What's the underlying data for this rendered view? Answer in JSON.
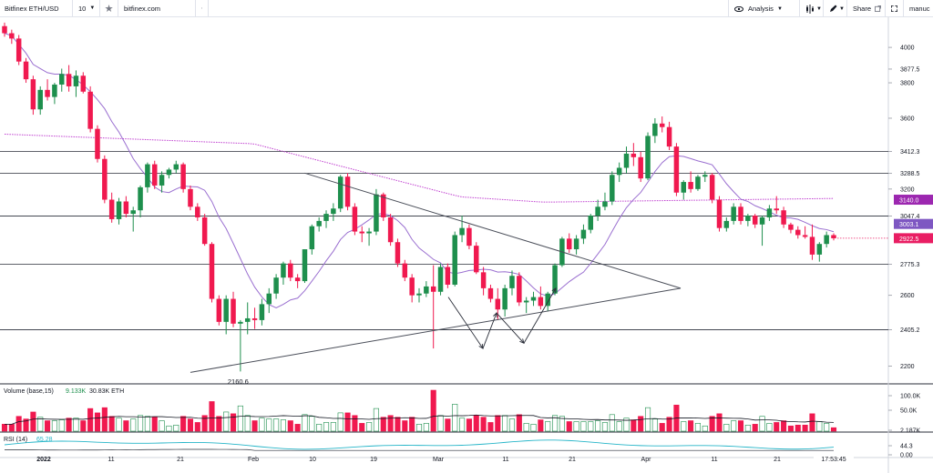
{
  "toolbar": {
    "symbol": "Bitfinex ETH/USD",
    "interval": "10",
    "site": "bitfinex.com",
    "analysis_label": "Analysis",
    "share_label": "Share",
    "user": "manuc"
  },
  "chart_data": {
    "type": "candlestick",
    "ylim": [
      2100,
      4170
    ],
    "price_ticks": [
      2200,
      2405.2,
      2600,
      2775.3,
      3047.4,
      3200,
      3288.5,
      3412.3,
      3600,
      3800,
      3877.5,
      4000
    ],
    "horizontal_levels": [
      2405.2,
      2775.3,
      3047.4,
      3288.5,
      3412.3
    ],
    "price_labels": [
      {
        "text": "3140.0",
        "value": 3140.0,
        "color": "#9c27b0"
      },
      {
        "text": "3003.1",
        "value": 3003.1,
        "color": "#7e57c2"
      },
      {
        "text": "2922.5",
        "value": 2922.5,
        "color": "#e91e63"
      }
    ],
    "annotations": [
      {
        "text": "2160.6",
        "value": 2160.6
      }
    ],
    "x_labels": [
      "2022",
      "11",
      "21",
      "Feb",
      "10",
      "19",
      "Mar",
      "11",
      "21",
      "Apr",
      "11",
      "21",
      "17:53:45"
    ],
    "up_color": "#1e8f4d",
    "down_color": "#f0194f",
    "candles": [
      {
        "o": 4120,
        "h": 4140,
        "l": 4060,
        "c": 4080
      },
      {
        "o": 4080,
        "h": 4100,
        "l": 4020,
        "c": 4050
      },
      {
        "o": 4050,
        "h": 4070,
        "l": 3900,
        "c": 3920
      },
      {
        "o": 3920,
        "h": 3940,
        "l": 3800,
        "c": 3820
      },
      {
        "o": 3820,
        "h": 3840,
        "l": 3620,
        "c": 3650
      },
      {
        "o": 3650,
        "h": 3780,
        "l": 3620,
        "c": 3760
      },
      {
        "o": 3760,
        "h": 3820,
        "l": 3700,
        "c": 3720
      },
      {
        "o": 3720,
        "h": 3800,
        "l": 3680,
        "c": 3790
      },
      {
        "o": 3790,
        "h": 3880,
        "l": 3750,
        "c": 3850
      },
      {
        "o": 3850,
        "h": 3900,
        "l": 3750,
        "c": 3780
      },
      {
        "o": 3780,
        "h": 3870,
        "l": 3720,
        "c": 3840
      },
      {
        "o": 3840,
        "h": 3860,
        "l": 3740,
        "c": 3750
      },
      {
        "o": 3750,
        "h": 3780,
        "l": 3520,
        "c": 3540
      },
      {
        "o": 3540,
        "h": 3560,
        "l": 3350,
        "c": 3370
      },
      {
        "o": 3370,
        "h": 3390,
        "l": 3120,
        "c": 3140
      },
      {
        "o": 3140,
        "h": 3180,
        "l": 3010,
        "c": 3030
      },
      {
        "o": 3030,
        "h": 3150,
        "l": 3000,
        "c": 3130
      },
      {
        "o": 3130,
        "h": 3160,
        "l": 3040,
        "c": 3060
      },
      {
        "o": 3060,
        "h": 3100,
        "l": 2960,
        "c": 3080
      },
      {
        "o": 3080,
        "h": 3220,
        "l": 3040,
        "c": 3210
      },
      {
        "o": 3210,
        "h": 3350,
        "l": 3180,
        "c": 3340
      },
      {
        "o": 3340,
        "h": 3360,
        "l": 3200,
        "c": 3220
      },
      {
        "o": 3220,
        "h": 3300,
        "l": 3180,
        "c": 3280
      },
      {
        "o": 3280,
        "h": 3320,
        "l": 3260,
        "c": 3310
      },
      {
        "o": 3310,
        "h": 3360,
        "l": 3290,
        "c": 3340
      },
      {
        "o": 3340,
        "h": 3350,
        "l": 3180,
        "c": 3200
      },
      {
        "o": 3200,
        "h": 3220,
        "l": 3080,
        "c": 3100
      },
      {
        "o": 3100,
        "h": 3120,
        "l": 3020,
        "c": 3040
      },
      {
        "o": 3040,
        "h": 3060,
        "l": 2880,
        "c": 2890
      },
      {
        "o": 2890,
        "h": 2900,
        "l": 2560,
        "c": 2580
      },
      {
        "o": 2580,
        "h": 2600,
        "l": 2430,
        "c": 2450
      },
      {
        "o": 2450,
        "h": 2600,
        "l": 2380,
        "c": 2580
      },
      {
        "o": 2580,
        "h": 2620,
        "l": 2420,
        "c": 2440
      },
      {
        "o": 2440,
        "h": 2460,
        "l": 2170,
        "c": 2450
      },
      {
        "o": 2450,
        "h": 2560,
        "l": 2380,
        "c": 2470
      },
      {
        "o": 2470,
        "h": 2530,
        "l": 2410,
        "c": 2460
      },
      {
        "o": 2460,
        "h": 2580,
        "l": 2430,
        "c": 2550
      },
      {
        "o": 2550,
        "h": 2640,
        "l": 2500,
        "c": 2610
      },
      {
        "o": 2610,
        "h": 2720,
        "l": 2580,
        "c": 2700
      },
      {
        "o": 2700,
        "h": 2790,
        "l": 2660,
        "c": 2780
      },
      {
        "o": 2780,
        "h": 2800,
        "l": 2680,
        "c": 2700
      },
      {
        "o": 2700,
        "h": 2720,
        "l": 2640,
        "c": 2680
      },
      {
        "o": 2680,
        "h": 2860,
        "l": 2670,
        "c": 2860
      },
      {
        "o": 2860,
        "h": 3000,
        "l": 2830,
        "c": 2990
      },
      {
        "o": 2990,
        "h": 3040,
        "l": 2960,
        "c": 3020
      },
      {
        "o": 3020,
        "h": 3080,
        "l": 2980,
        "c": 3060
      },
      {
        "o": 3060,
        "h": 3120,
        "l": 3020,
        "c": 3090
      },
      {
        "o": 3090,
        "h": 3280,
        "l": 3070,
        "c": 3270
      },
      {
        "o": 3270,
        "h": 3290,
        "l": 3080,
        "c": 3100
      },
      {
        "o": 3100,
        "h": 3120,
        "l": 2940,
        "c": 2960
      },
      {
        "o": 2960,
        "h": 2990,
        "l": 2900,
        "c": 2950
      },
      {
        "o": 2950,
        "h": 2980,
        "l": 2880,
        "c": 2960
      },
      {
        "o": 2960,
        "h": 3200,
        "l": 2940,
        "c": 3170
      },
      {
        "o": 3170,
        "h": 3180,
        "l": 3020,
        "c": 3040
      },
      {
        "o": 3040,
        "h": 3060,
        "l": 2880,
        "c": 2900
      },
      {
        "o": 2900,
        "h": 2920,
        "l": 2760,
        "c": 2780
      },
      {
        "o": 2780,
        "h": 2800,
        "l": 2680,
        "c": 2700
      },
      {
        "o": 2700,
        "h": 2720,
        "l": 2560,
        "c": 2600
      },
      {
        "o": 2600,
        "h": 2640,
        "l": 2560,
        "c": 2610
      },
      {
        "o": 2610,
        "h": 2680,
        "l": 2590,
        "c": 2650
      },
      {
        "o": 2650,
        "h": 2770,
        "l": 2300,
        "c": 2620
      },
      {
        "o": 2620,
        "h": 2780,
        "l": 2600,
        "c": 2760
      },
      {
        "o": 2760,
        "h": 2780,
        "l": 2640,
        "c": 2660
      },
      {
        "o": 2660,
        "h": 2960,
        "l": 2650,
        "c": 2940
      },
      {
        "o": 2940,
        "h": 3050,
        "l": 2900,
        "c": 2980
      },
      {
        "o": 2980,
        "h": 3000,
        "l": 2860,
        "c": 2880
      },
      {
        "o": 2880,
        "h": 2900,
        "l": 2720,
        "c": 2730
      },
      {
        "o": 2730,
        "h": 2760,
        "l": 2600,
        "c": 2640
      },
      {
        "o": 2640,
        "h": 2660,
        "l": 2560,
        "c": 2580
      },
      {
        "o": 2580,
        "h": 2640,
        "l": 2460,
        "c": 2520
      },
      {
        "o": 2520,
        "h": 2660,
        "l": 2480,
        "c": 2640
      },
      {
        "o": 2640,
        "h": 2740,
        "l": 2600,
        "c": 2710
      },
      {
        "o": 2710,
        "h": 2730,
        "l": 2540,
        "c": 2560
      },
      {
        "o": 2560,
        "h": 2590,
        "l": 2500,
        "c": 2570
      },
      {
        "o": 2570,
        "h": 2620,
        "l": 2540,
        "c": 2590
      },
      {
        "o": 2590,
        "h": 2650,
        "l": 2520,
        "c": 2540
      },
      {
        "o": 2540,
        "h": 2620,
        "l": 2510,
        "c": 2610
      },
      {
        "o": 2610,
        "h": 2780,
        "l": 2600,
        "c": 2770
      },
      {
        "o": 2770,
        "h": 2930,
        "l": 2760,
        "c": 2920
      },
      {
        "o": 2920,
        "h": 2950,
        "l": 2840,
        "c": 2860
      },
      {
        "o": 2860,
        "h": 2940,
        "l": 2830,
        "c": 2920
      },
      {
        "o": 2920,
        "h": 3000,
        "l": 2890,
        "c": 2970
      },
      {
        "o": 2970,
        "h": 3060,
        "l": 2950,
        "c": 3050
      },
      {
        "o": 3050,
        "h": 3140,
        "l": 3020,
        "c": 3100
      },
      {
        "o": 3100,
        "h": 3180,
        "l": 3080,
        "c": 3130
      },
      {
        "o": 3130,
        "h": 3300,
        "l": 3110,
        "c": 3280
      },
      {
        "o": 3280,
        "h": 3350,
        "l": 3240,
        "c": 3320
      },
      {
        "o": 3320,
        "h": 3440,
        "l": 3290,
        "c": 3400
      },
      {
        "o": 3400,
        "h": 3460,
        "l": 3330,
        "c": 3380
      },
      {
        "o": 3380,
        "h": 3410,
        "l": 3240,
        "c": 3260
      },
      {
        "o": 3260,
        "h": 3520,
        "l": 3250,
        "c": 3500
      },
      {
        "o": 3500,
        "h": 3600,
        "l": 3460,
        "c": 3570
      },
      {
        "o": 3570,
        "h": 3610,
        "l": 3520,
        "c": 3550
      },
      {
        "o": 3550,
        "h": 3580,
        "l": 3420,
        "c": 3440
      },
      {
        "o": 3440,
        "h": 3460,
        "l": 3160,
        "c": 3180
      },
      {
        "o": 3180,
        "h": 3250,
        "l": 3140,
        "c": 3240
      },
      {
        "o": 3240,
        "h": 3300,
        "l": 3180,
        "c": 3200
      },
      {
        "o": 3200,
        "h": 3280,
        "l": 3190,
        "c": 3270
      },
      {
        "o": 3270,
        "h": 3300,
        "l": 3240,
        "c": 3280
      },
      {
        "o": 3280,
        "h": 3290,
        "l": 3120,
        "c": 3140
      },
      {
        "o": 3140,
        "h": 3160,
        "l": 2960,
        "c": 2980
      },
      {
        "o": 2980,
        "h": 3040,
        "l": 2960,
        "c": 3020
      },
      {
        "o": 3020,
        "h": 3120,
        "l": 3000,
        "c": 3100
      },
      {
        "o": 3100,
        "h": 3120,
        "l": 3000,
        "c": 3020
      },
      {
        "o": 3020,
        "h": 3060,
        "l": 2990,
        "c": 3050
      },
      {
        "o": 3050,
        "h": 3060,
        "l": 2980,
        "c": 3000
      },
      {
        "o": 3000,
        "h": 3050,
        "l": 2880,
        "c": 3040
      },
      {
        "o": 3040,
        "h": 3110,
        "l": 3020,
        "c": 3090
      },
      {
        "o": 3090,
        "h": 3160,
        "l": 3060,
        "c": 3080
      },
      {
        "o": 3080,
        "h": 3100,
        "l": 2980,
        "c": 3000
      },
      {
        "o": 3000,
        "h": 3010,
        "l": 2950,
        "c": 2970
      },
      {
        "o": 2970,
        "h": 2990,
        "l": 2920,
        "c": 2940
      },
      {
        "o": 2940,
        "h": 2990,
        "l": 2920,
        "c": 2930
      },
      {
        "o": 2930,
        "h": 3000,
        "l": 2800,
        "c": 2830
      },
      {
        "o": 2830,
        "h": 2900,
        "l": 2790,
        "c": 2890
      },
      {
        "o": 2890,
        "h": 2960,
        "l": 2870,
        "c": 2940
      },
      {
        "o": 2940,
        "h": 2950,
        "l": 2910,
        "c": 2922
      }
    ],
    "volume_panel": {
      "label": "Volume (base,15)",
      "value1": "9.133K",
      "value2": "30.83K ETH",
      "ticks": [
        "100.0K",
        "50.0K",
        "2.187K"
      ]
    },
    "rsi_panel": {
      "label": "RSI (14)",
      "value": "65.28",
      "ticks": [
        "44.3",
        "0.00"
      ]
    }
  }
}
